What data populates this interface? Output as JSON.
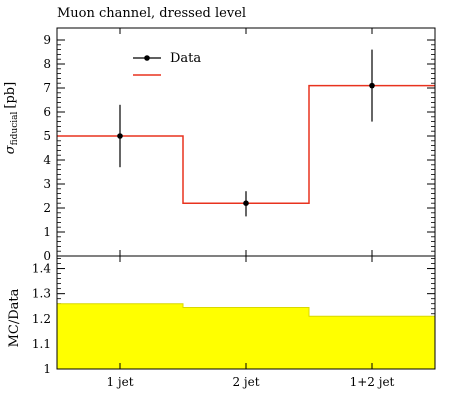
{
  "chart_data": [
    {
      "type": "line",
      "title": "Muon channel, dressed level",
      "ylabel": "σ_fiducial [pb]",
      "ylabel_main": "σ",
      "ylabel_sub": "fiducial",
      "ylabel_unit": "[pb]",
      "ylim": [
        0,
        9.5
      ],
      "yticks": [
        0,
        1,
        2,
        3,
        4,
        5,
        6,
        7,
        8,
        9
      ],
      "categories": [
        "1 jet",
        "2 jet",
        "1+2 jet"
      ],
      "legend": {
        "placement": "top-left"
      },
      "series": [
        {
          "name": "Data",
          "style": "points-errorbars",
          "color": "#000000",
          "values": [
            5.0,
            2.2,
            7.1
          ],
          "err_low": [
            1.3,
            0.55,
            1.5
          ],
          "err_high": [
            1.3,
            0.5,
            1.5
          ]
        },
        {
          "name": "",
          "style": "step",
          "color": "#e8321e",
          "values": [
            5.0,
            2.2,
            7.1
          ]
        }
      ]
    },
    {
      "type": "area",
      "ylabel": "MC/Data",
      "ylim": [
        1.0,
        1.45
      ],
      "yticks": [
        "1",
        "1.1",
        "1.2",
        "1.3",
        "1.4"
      ],
      "categories": [
        "1 jet",
        "2 jet",
        "1+2 jet"
      ],
      "series": [
        {
          "name": "",
          "style": "step-band",
          "color": "#ffff00",
          "values": [
            1.26,
            1.245,
            1.21
          ]
        }
      ]
    }
  ]
}
